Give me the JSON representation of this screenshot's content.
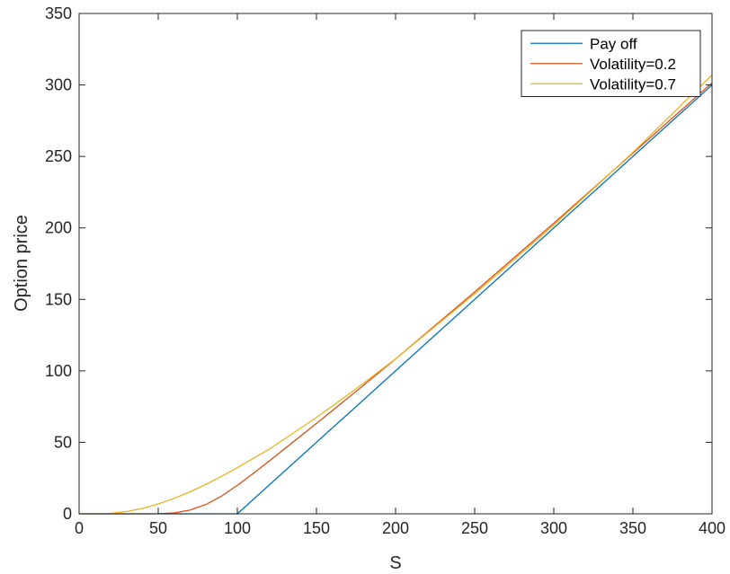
{
  "chart_data": {
    "type": "line",
    "title": "",
    "xlabel": "S",
    "ylabel": "Option price",
    "xlim": [
      0,
      400
    ],
    "ylim": [
      0,
      350
    ],
    "xticks": [
      0,
      50,
      100,
      150,
      200,
      250,
      300,
      350,
      400
    ],
    "yticks": [
      0,
      50,
      100,
      150,
      200,
      250,
      300,
      350
    ],
    "grid": false,
    "legend_position": "top-right",
    "series": [
      {
        "name": "Pay off",
        "color": "#0072BD",
        "x": [
          0,
          100,
          400
        ],
        "y": [
          0,
          0,
          300
        ]
      },
      {
        "name": "Volatility=0.2",
        "color": "#D95319",
        "x": [
          0,
          40,
          50,
          60,
          70,
          80,
          90,
          100,
          110,
          120,
          130,
          140,
          150,
          175,
          200,
          250,
          300,
          350,
          400
        ],
        "y": [
          0,
          0,
          0.1,
          0.6,
          2.6,
          6.5,
          12.4,
          19.9,
          28.2,
          36.8,
          45.6,
          54.4,
          63.2,
          85.6,
          108.3,
          155.2,
          203.3,
          252.3,
          301.5
        ]
      },
      {
        "name": "Volatility=0.7",
        "color": "#EDB120",
        "x": [
          0,
          10,
          20,
          30,
          40,
          50,
          60,
          70,
          80,
          90,
          100,
          120,
          150,
          175,
          200,
          250,
          300,
          350,
          400
        ],
        "y": [
          0,
          0,
          0.3,
          1.6,
          3.8,
          6.9,
          10.8,
          15.3,
          20.5,
          26.2,
          32.3,
          45.1,
          67.4,
          87.4,
          108.4,
          153.9,
          202.0,
          252.8,
          307.0
        ]
      }
    ]
  }
}
